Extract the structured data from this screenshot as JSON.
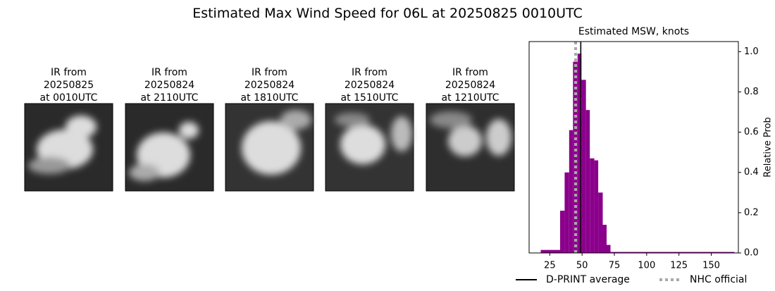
{
  "title": "Estimated Max Wind Speed for 06L at 20250825 0010UTC",
  "panels": [
    {
      "lines": [
        "IR from",
        "20250825",
        "at 0010UTC"
      ]
    },
    {
      "lines": [
        "IR from",
        "20250824",
        "at 2110UTC"
      ]
    },
    {
      "lines": [
        "IR from",
        "20250824",
        "at 1810UTC"
      ]
    },
    {
      "lines": [
        "IR from",
        "20250824",
        "at 1510UTC"
      ]
    },
    {
      "lines": [
        "IR from",
        "20250824",
        "at 1210UTC"
      ]
    }
  ],
  "chart_data": {
    "type": "histogram",
    "title": "Estimated MSW, knots",
    "ylabel": "Relative Prob",
    "y_axis_side": "right",
    "color": "#8b008b",
    "bins": [
      18,
      33,
      36.5,
      40,
      43,
      46.5,
      49.5,
      53,
      56,
      59.5,
      62.5,
      66,
      69,
      72,
      168
    ],
    "values": [
      0.015,
      0.21,
      0.4,
      0.61,
      0.95,
      0.99,
      0.86,
      0.71,
      0.47,
      0.46,
      0.3,
      0.14,
      0.04,
      0.005
    ],
    "xlim": [
      9,
      171
    ],
    "ylim": [
      0,
      1.05
    ],
    "xticks": [
      25,
      50,
      75,
      100,
      125,
      150
    ],
    "yticks": [
      {
        "value": 0,
        "label": "0.0"
      },
      {
        "value": 0.2,
        "label": "0.2"
      },
      {
        "value": 0.4,
        "label": "0.4"
      },
      {
        "value": 0.6,
        "label": "0.6"
      },
      {
        "value": 0.8,
        "label": "0.8"
      },
      {
        "value": 1,
        "label": "1.0"
      }
    ],
    "reference_lines": [
      {
        "name": "D-PRINT average",
        "value": 49,
        "color": "#000000",
        "style": "solid"
      },
      {
        "name": "NHC official",
        "value": 45,
        "color": "#a9a9a9",
        "style": "dotted"
      }
    ]
  }
}
